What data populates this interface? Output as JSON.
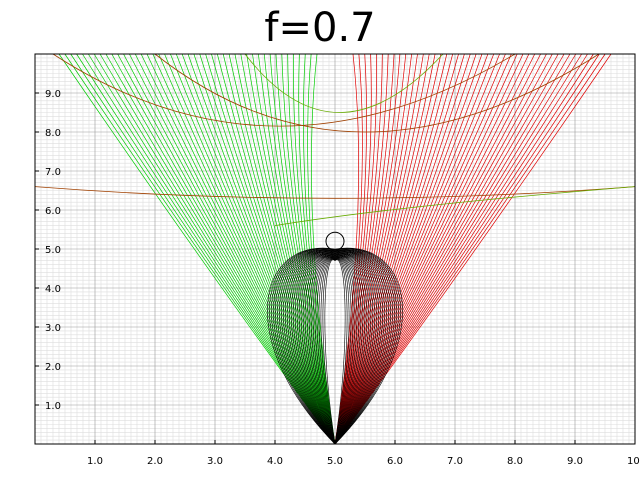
{
  "chart_data": {
    "type": "line",
    "title": "f=0.7",
    "xlabel": "",
    "ylabel": "",
    "xlim": [
      0,
      10
    ],
    "ylim": [
      0,
      10
    ],
    "grid": true,
    "x_ticks": [
      "1.0",
      "2.0",
      "3.0",
      "4.0",
      "5.0",
      "6.0",
      "7.0",
      "8.0",
      "9.0",
      "10."
    ],
    "y_ticks": [
      "1.0",
      "2.0",
      "3.0",
      "4.0",
      "5.0",
      "6.0",
      "7.0",
      "8.0",
      "9.0"
    ],
    "apex": [
      5.0,
      0.0
    ],
    "series": [
      {
        "color": "#00cc00",
        "description_group": "left fan lines from apex, curving right near y≈6"
      },
      {
        "color": "#e00000",
        "description_group": "right fan lines from apex, curving left near y≈6"
      },
      {
        "color": "#000000",
        "description_group": "dense black loop contours between x 3.7 and 6.2 up to y≈5.4"
      },
      {
        "color": "#a04000",
        "description_group": "long brown curves crossing plot"
      }
    ]
  }
}
